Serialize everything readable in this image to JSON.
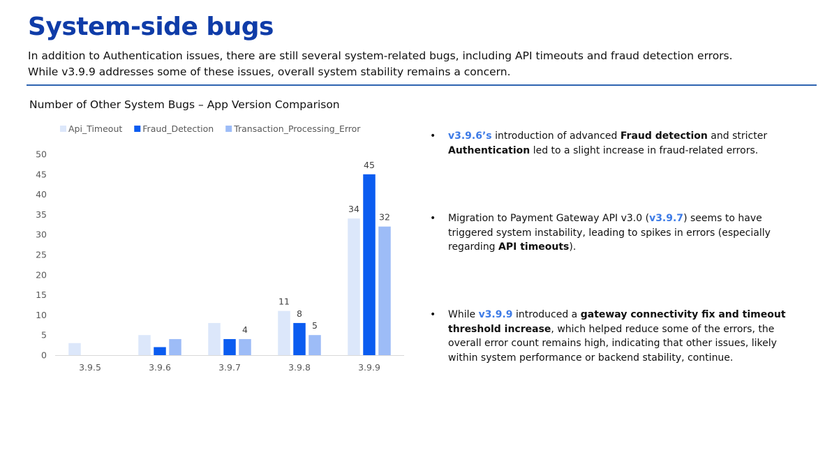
{
  "page": {
    "title": "System-side bugs",
    "subtitle_line1": "In addition to Authentication issues, there are still several system-related bugs, including API timeouts and fraud detection errors.",
    "subtitle_line2": "While v3.9.9 addresses some of these issues, overall system stability remains a concern."
  },
  "colors": {
    "title": "#0f3ca8",
    "rule": "#2e63b0",
    "highlight": "#3d7be6"
  },
  "chart_data": {
    "type": "bar",
    "title": "Number of Other System Bugs – App Version Comparison",
    "xlabel": "",
    "ylabel": "",
    "categories": [
      "3.9.5",
      "3.9.6",
      "3.9.7",
      "3.9.8",
      "3.9.9"
    ],
    "series": [
      {
        "name": "Api_Timeout",
        "color": "#dce7fa",
        "values": [
          3,
          5,
          8,
          11,
          34
        ],
        "labeled": [
          false,
          false,
          false,
          true,
          true
        ]
      },
      {
        "name": "Fraud_Detection",
        "color": "#0b5cf0",
        "values": [
          0,
          2,
          4,
          8,
          45
        ],
        "labeled": [
          false,
          false,
          false,
          true,
          true
        ]
      },
      {
        "name": "Transaction_Processing_Error",
        "color": "#9dbcf7",
        "values": [
          0,
          4,
          4,
          5,
          32
        ],
        "labeled": [
          false,
          false,
          true,
          true,
          true
        ]
      }
    ],
    "ylim": [
      0,
      50
    ],
    "yticks": [
      "0",
      "5",
      "10",
      "15",
      "20",
      "25",
      "30",
      "35",
      "40",
      "45",
      "50"
    ],
    "grid": false,
    "legend_position": "top-left"
  },
  "bullets": [
    {
      "marker": "•",
      "parts": [
        {
          "text": "v3.9.6’s",
          "style": "hl"
        },
        {
          "text": " introduction of advanced ",
          "style": ""
        },
        {
          "text": "Fraud detection",
          "style": "b"
        },
        {
          "text": " and stricter ",
          "style": ""
        },
        {
          "text": "Authentication",
          "style": "b"
        },
        {
          "text": " led to a slight increase in fraud-related errors.",
          "style": ""
        }
      ]
    },
    {
      "marker": "•",
      "parts": [
        {
          "text": "Migration to Payment Gateway API v3.0 (",
          "style": ""
        },
        {
          "text": "v3.9.7",
          "style": "hl"
        },
        {
          "text": ") seems to have triggered system instability, leading to spikes in errors (especially regarding ",
          "style": ""
        },
        {
          "text": "API timeouts",
          "style": "b"
        },
        {
          "text": ").",
          "style": ""
        }
      ]
    },
    {
      "marker": "•",
      "parts": [
        {
          "text": "While ",
          "style": ""
        },
        {
          "text": "v3.9.9",
          "style": "hl"
        },
        {
          "text": " introduced a ",
          "style": ""
        },
        {
          "text": "gateway connectivity fix and timeout threshold increase",
          "style": "b"
        },
        {
          "text": ", which helped reduce some of the errors, the overall error count remains high, indicating that other issues, likely within system performance or backend stability, continue.",
          "style": ""
        }
      ]
    }
  ]
}
